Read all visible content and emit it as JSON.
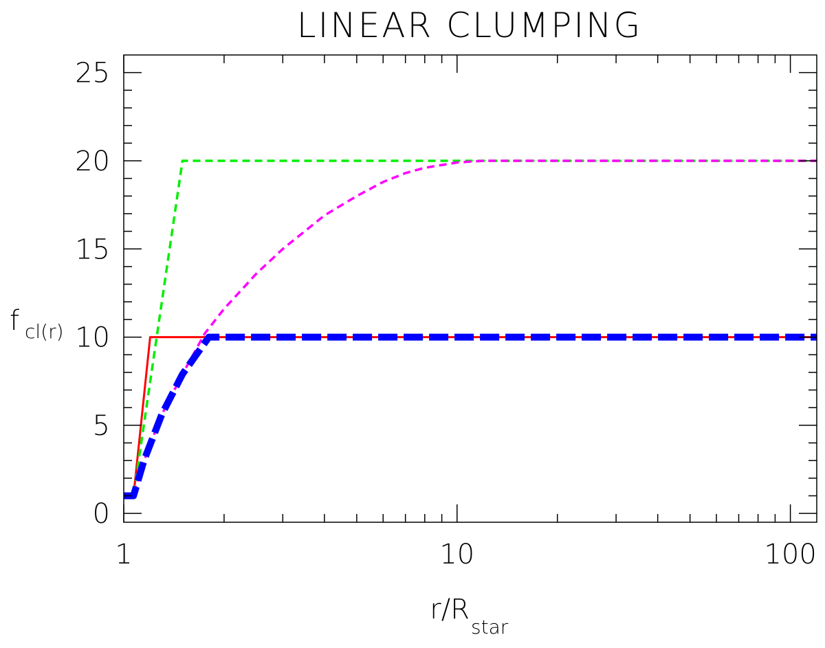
{
  "chart_data": {
    "type": "line",
    "title": "LINEAR CLUMPING",
    "xlabel": "r/R",
    "xlabel_sub": "star",
    "ylabel": "f",
    "ylabel_sub": "cl(r)",
    "xscale": "log",
    "xlim": [
      1,
      120
    ],
    "ylim": [
      -0.5,
      26
    ],
    "x_ticks": [
      1,
      10,
      100
    ],
    "x_tick_labels": [
      "1",
      "10",
      "100"
    ],
    "y_ticks": [
      0,
      5,
      10,
      15,
      20,
      25
    ],
    "y_tick_labels": [
      "0",
      "5",
      "10",
      "15",
      "20",
      "25"
    ],
    "grid": false,
    "legend": "none",
    "series": [
      {
        "color": "#ff0000",
        "style": "solid",
        "x": [
          1.0,
          1.07,
          1.2,
          120
        ],
        "y": [
          1.0,
          1.0,
          10.0,
          10.0
        ]
      },
      {
        "color": "#00ee00",
        "style": "dashed",
        "x": [
          1.0,
          1.07,
          1.5,
          120
        ],
        "y": [
          1.0,
          1.0,
          20.0,
          20.0
        ]
      },
      {
        "color": "#ff00ff",
        "style": "dashed",
        "x": [
          1.0,
          1.07,
          1.15,
          1.3,
          1.5,
          1.75,
          2.0,
          2.5,
          3.0,
          4.0,
          5.0,
          6.0,
          7.0,
          8.0,
          10.0,
          12.0,
          14.0,
          20.0,
          50.0,
          120
        ],
        "y": [
          1.0,
          1.0,
          3.0,
          5.6,
          7.9,
          10.2,
          11.6,
          13.6,
          15.0,
          16.9,
          18.0,
          18.8,
          19.3,
          19.6,
          19.9,
          20.0,
          20.0,
          20.0,
          20.0,
          20.0
        ]
      },
      {
        "color": "#0000ff",
        "style": "thick-dashed",
        "x": [
          1.0,
          1.07,
          1.15,
          1.3,
          1.5,
          1.8,
          120
        ],
        "y": [
          1.0,
          1.0,
          3.0,
          5.6,
          7.9,
          10.0,
          10.0
        ]
      }
    ]
  }
}
